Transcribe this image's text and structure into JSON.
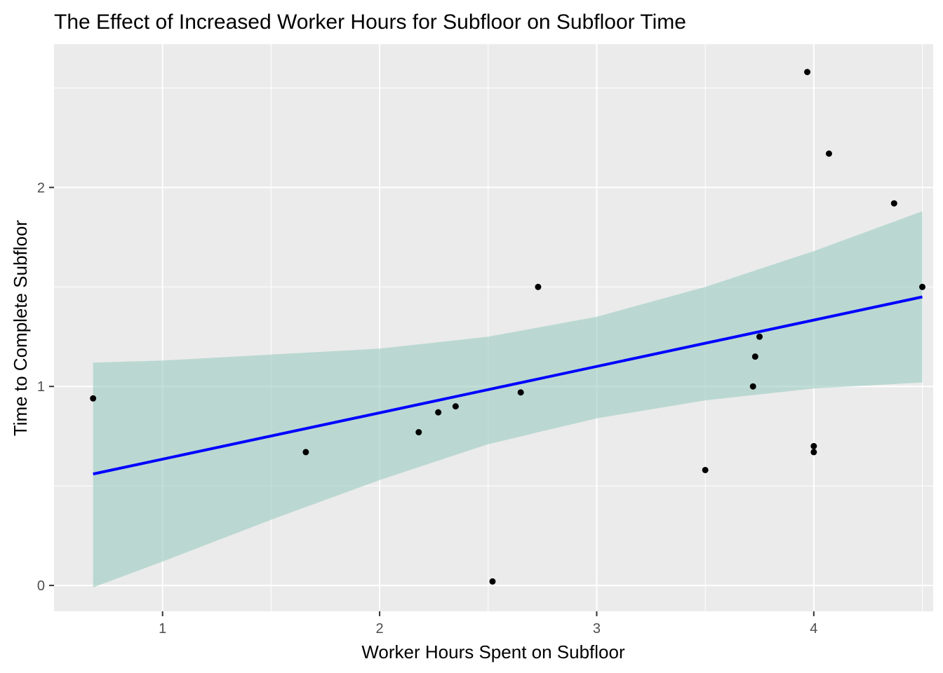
{
  "chart_data": {
    "type": "scatter",
    "title": "The Effect of Increased Worker Hours for Subfloor on Subfloor Time",
    "xlabel": "Worker Hours Spent on Subfloor",
    "ylabel": "Time to Complete Subfloor",
    "xlim": [
      0.5,
      4.55
    ],
    "ylim": [
      -0.13,
      2.72
    ],
    "x_ticks": [
      1,
      2,
      3,
      4
    ],
    "y_ticks": [
      0,
      1,
      2
    ],
    "grid": true,
    "colors": {
      "panel_bg": "#EBEBEB",
      "grid": "#FFFFFF",
      "points": "#000000",
      "fit_line": "#0000FF",
      "ribbon": "#99CCC0"
    },
    "points": [
      {
        "x": 0.68,
        "y": 0.94
      },
      {
        "x": 1.66,
        "y": 0.67
      },
      {
        "x": 2.18,
        "y": 0.77
      },
      {
        "x": 2.27,
        "y": 0.87
      },
      {
        "x": 2.35,
        "y": 0.9
      },
      {
        "x": 2.52,
        "y": 0.02
      },
      {
        "x": 2.65,
        "y": 0.97
      },
      {
        "x": 2.73,
        "y": 1.5
      },
      {
        "x": 3.5,
        "y": 0.58
      },
      {
        "x": 3.72,
        "y": 1.0
      },
      {
        "x": 3.73,
        "y": 1.15
      },
      {
        "x": 3.75,
        "y": 1.25
      },
      {
        "x": 3.97,
        "y": 2.58
      },
      {
        "x": 4.0,
        "y": 0.7
      },
      {
        "x": 4.0,
        "y": 0.67
      },
      {
        "x": 4.07,
        "y": 2.17
      },
      {
        "x": 4.37,
        "y": 1.92
      },
      {
        "x": 4.5,
        "y": 1.5
      }
    ],
    "fit": {
      "method": "lm",
      "x": [
        0.68,
        4.5
      ],
      "y": [
        0.56,
        1.45
      ]
    },
    "confidence_band": {
      "x": [
        0.68,
        1.0,
        1.5,
        2.0,
        2.5,
        3.0,
        3.5,
        4.0,
        4.5
      ],
      "lower": [
        -0.01,
        0.12,
        0.33,
        0.53,
        0.71,
        0.84,
        0.93,
        0.99,
        1.02
      ],
      "upper": [
        1.12,
        1.13,
        1.16,
        1.19,
        1.25,
        1.35,
        1.5,
        1.68,
        1.88
      ]
    }
  }
}
